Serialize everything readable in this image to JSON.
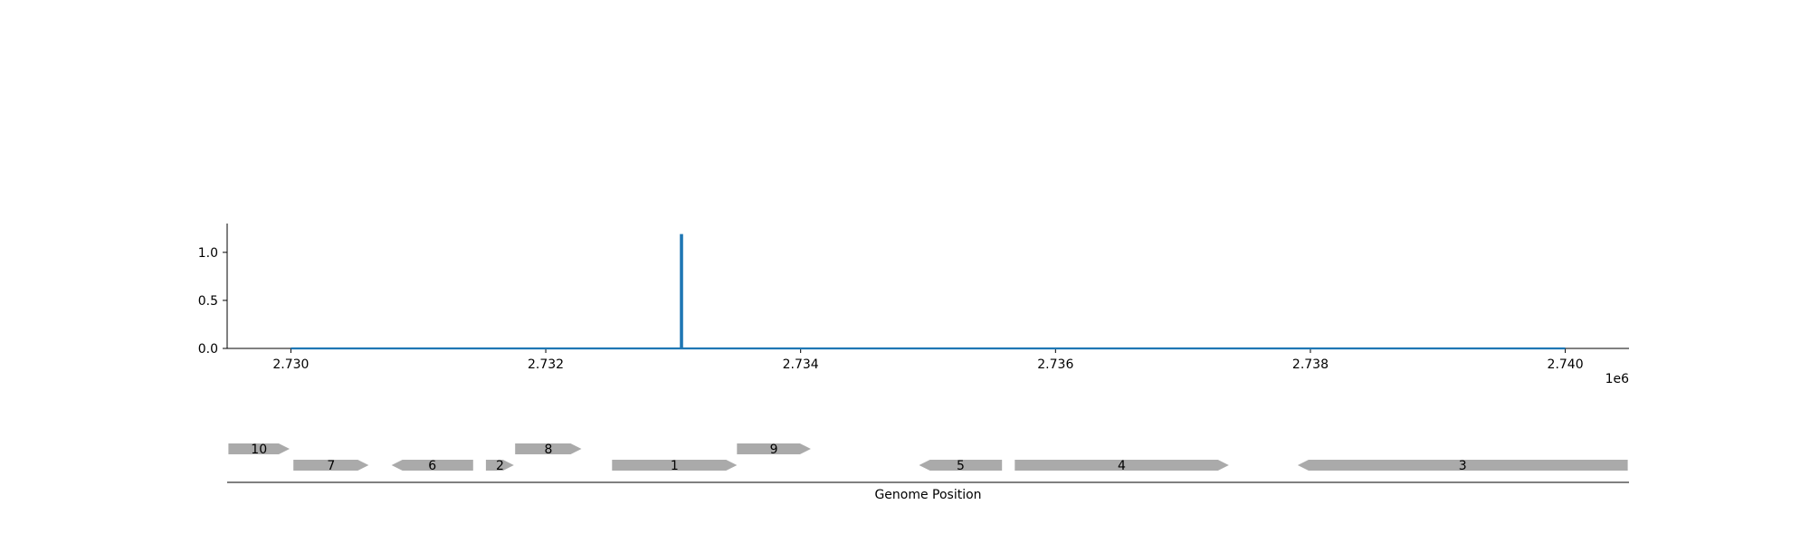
{
  "chart_data": [
    {
      "type": "line",
      "x_offset_label": "1e6",
      "x_ticks": [
        2730000,
        2732000,
        2734000,
        2736000,
        2738000,
        2740000
      ],
      "x_tick_labels": [
        "2.730",
        "2.732",
        "2.734",
        "2.736",
        "2.738",
        "2.740"
      ],
      "y_ticks": [
        0.0,
        0.5,
        1.0
      ],
      "y_tick_labels": [
        "0.0",
        "0.5",
        "1.0"
      ],
      "xlim": [
        2729500,
        2740500
      ],
      "ylim": [
        0,
        1.3
      ],
      "grid": false,
      "series": [
        {
          "color": "#1f77b4",
          "points": [
            [
              2730000,
              0
            ],
            [
              2733060,
              0
            ],
            [
              2733060,
              1.18
            ],
            [
              2733070,
              1.18
            ],
            [
              2733070,
              0
            ],
            [
              2740000,
              0
            ]
          ]
        }
      ]
    },
    {
      "type": "gene-track",
      "xlabel": "Genome Position",
      "xlim": [
        2729500,
        2740500
      ],
      "feature_color": "#aaaaaa",
      "features": [
        {
          "label": "10",
          "start": 2729510,
          "end": 2729990,
          "strand": "+",
          "row": 1
        },
        {
          "label": "7",
          "start": 2730020,
          "end": 2730610,
          "strand": "+",
          "row": 0
        },
        {
          "label": "6",
          "start": 2730790,
          "end": 2731430,
          "strand": "-",
          "row": 0
        },
        {
          "label": "2",
          "start": 2731530,
          "end": 2731750,
          "strand": "+",
          "row": 0
        },
        {
          "label": "8",
          "start": 2731760,
          "end": 2732280,
          "strand": "+",
          "row": 1
        },
        {
          "label": "1",
          "start": 2732520,
          "end": 2733500,
          "strand": "+",
          "row": 0
        },
        {
          "label": "9",
          "start": 2733500,
          "end": 2734080,
          "strand": "+",
          "row": 1
        },
        {
          "label": "5",
          "start": 2734930,
          "end": 2735580,
          "strand": "-",
          "row": 0
        },
        {
          "label": "4",
          "start": 2735680,
          "end": 2737360,
          "strand": "+",
          "row": 0
        },
        {
          "label": "3",
          "start": 2737900,
          "end": 2740490,
          "strand": "-",
          "row": 0
        }
      ]
    }
  ]
}
